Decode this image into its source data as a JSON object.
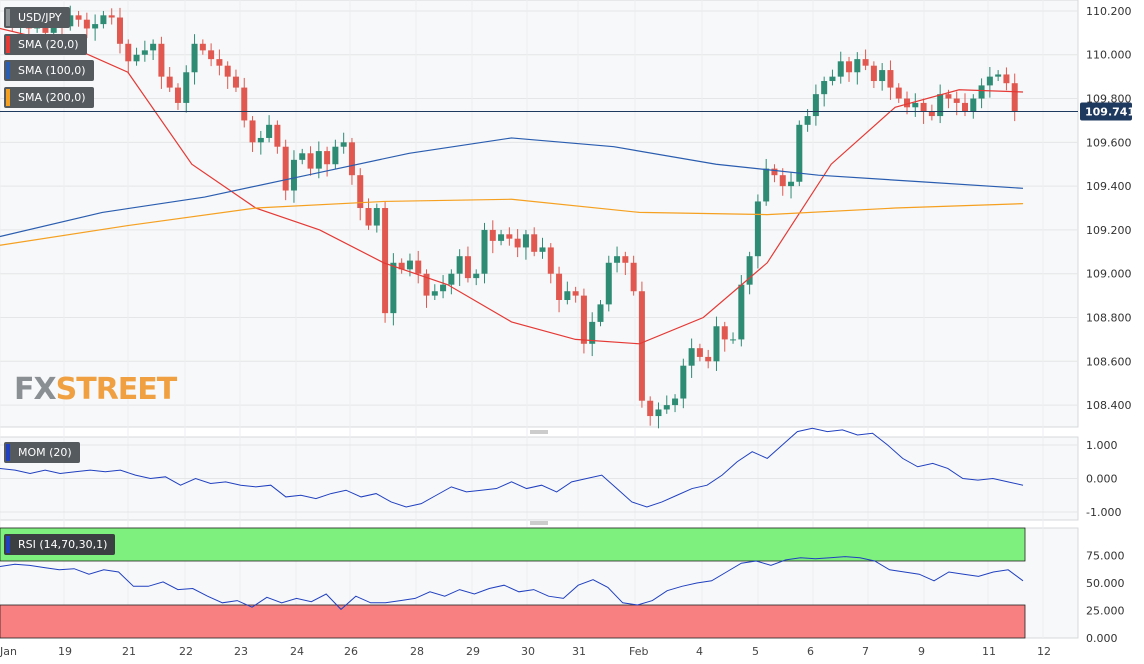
{
  "symbol": "USD/JPY",
  "brand": {
    "prefix": "FX",
    "suffix": "STREET"
  },
  "legend": {
    "sma20": {
      "label": "SMA (20,0)",
      "color": "#e53935"
    },
    "sma100": {
      "label": "SMA (100,0)",
      "color": "#2a5db0"
    },
    "sma200": {
      "label": "SMA (200,0)",
      "color": "#f5a020"
    },
    "mom": {
      "label": "MOM (20)",
      "color": "#2040c0"
    },
    "rsi": {
      "label": "RSI (14,70,30,1)",
      "color": "#2040c0"
    }
  },
  "colors": {
    "up": "#2e8b74",
    "down": "#e0584f",
    "price_line": "#1f3a5f",
    "rsi_high_zone": "#7ef07e",
    "rsi_low_zone": "#f98080"
  },
  "chart_data": [
    {
      "type": "candlestick",
      "title": "USD/JPY",
      "timeframe": "hourly (4h) candles",
      "x_ticks": [
        "Jan",
        "19",
        "21",
        "22",
        "23",
        "24",
        "26",
        "28",
        "29",
        "30",
        "31",
        "Feb",
        "4",
        "5",
        "6",
        "7",
        "9",
        "11",
        "12"
      ],
      "y_ticks": [
        "110.200",
        "110.000",
        "109.800",
        "109.600",
        "109.400",
        "109.200",
        "109.000",
        "108.800",
        "108.600",
        "108.400"
      ],
      "ylim": [
        108.3,
        110.25
      ],
      "last_price": "109.741",
      "close_path": [
        110.18,
        110.14,
        110.16,
        110.12,
        110.17,
        110.1,
        110.15,
        110.13,
        110.18,
        110.16,
        110.12,
        110.14,
        110.18,
        110.17,
        110.05,
        109.97,
        110.0,
        110.02,
        110.05,
        109.9,
        109.85,
        109.78,
        109.92,
        110.05,
        110.02,
        109.98,
        109.95,
        109.9,
        109.85,
        109.7,
        109.6,
        109.62,
        109.68,
        109.58,
        109.38,
        109.52,
        109.55,
        109.48,
        109.56,
        109.5,
        109.58,
        109.6,
        109.45,
        109.3,
        109.22,
        109.3,
        108.82,
        109.05,
        109.02,
        109.06,
        109.0,
        108.9,
        108.92,
        108.95,
        109.0,
        109.08,
        108.98,
        109.0,
        109.2,
        109.15,
        109.18,
        109.16,
        109.12,
        109.18,
        109.1,
        109.12,
        109.0,
        108.88,
        108.92,
        108.9,
        108.68,
        108.78,
        108.86,
        109.05,
        109.08,
        109.05,
        108.92,
        108.42,
        108.35,
        108.38,
        108.4,
        108.43,
        108.58,
        108.66,
        108.62,
        108.6,
        108.76,
        108.7,
        108.7,
        108.95,
        109.08,
        109.33,
        109.48,
        109.45,
        109.4,
        109.42,
        109.68,
        109.72,
        109.82,
        109.88,
        109.9,
        109.97,
        109.92,
        109.98,
        109.95,
        109.88,
        109.93,
        109.85,
        109.8,
        109.76,
        109.78,
        109.74,
        109.72,
        109.82,
        109.8,
        109.78,
        109.74,
        109.8,
        109.86,
        109.9,
        109.91,
        109.87,
        109.741
      ],
      "overlays": [
        {
          "name": "SMA (20,0)",
          "values": [
            110.12,
            110.05,
            109.92,
            109.5,
            109.3,
            109.2,
            109.05,
            108.95,
            108.78,
            108.7,
            108.68,
            108.8,
            109.05,
            109.5,
            109.76,
            109.84,
            109.83
          ]
        },
        {
          "name": "SMA (100,0)",
          "values": [
            109.17,
            109.28,
            109.35,
            109.45,
            109.55,
            109.62,
            109.58,
            109.5,
            109.45,
            109.42,
            109.39
          ]
        },
        {
          "name": "SMA (200,0)",
          "values": [
            109.13,
            109.22,
            109.3,
            109.33,
            109.34,
            109.28,
            109.27,
            109.3,
            109.32
          ]
        }
      ]
    },
    {
      "type": "line",
      "title": "MOM (20)",
      "y_ticks": [
        "1.000",
        "0.000",
        "-1.000"
      ],
      "ylim": [
        -1.0,
        1.0
      ],
      "series": [
        {
          "name": "MOM (20)",
          "values": [
            0.3,
            0.25,
            0.15,
            0.25,
            0.15,
            0.2,
            0.25,
            0.2,
            0.25,
            0.1,
            0.0,
            0.05,
            -0.2,
            0.0,
            -0.15,
            -0.1,
            -0.2,
            -0.25,
            -0.2,
            -0.55,
            -0.5,
            -0.6,
            -0.45,
            -0.35,
            -0.55,
            -0.45,
            -0.7,
            -0.85,
            -0.75,
            -0.5,
            -0.25,
            -0.4,
            -0.35,
            -0.3,
            -0.1,
            -0.3,
            -0.2,
            -0.4,
            -0.1,
            0.0,
            0.1,
            -0.3,
            -0.7,
            -0.85,
            -0.7,
            -0.5,
            -0.3,
            -0.2,
            0.1,
            0.5,
            0.8,
            0.6,
            1.0,
            1.4,
            1.5,
            1.4,
            1.45,
            1.3,
            1.35,
            1.0,
            0.6,
            0.35,
            0.45,
            0.3,
            0.0,
            -0.05,
            0.0,
            -0.1,
            -0.2
          ]
        }
      ]
    },
    {
      "type": "line",
      "title": "RSI (14,70,30,1)",
      "y_ticks": [
        "75.000",
        "50.000",
        "25.000",
        "0.000"
      ],
      "ylim": [
        0,
        100
      ],
      "bands": {
        "upper": 70,
        "lower": 30
      },
      "series": [
        {
          "name": "RSI (14,70,30,1)",
          "values": [
            65,
            67,
            66,
            64,
            62,
            63,
            58,
            62,
            60,
            47,
            47,
            51,
            44,
            45,
            38,
            32,
            34,
            28,
            37,
            32,
            36,
            33,
            40,
            26,
            38,
            32,
            32,
            34,
            36,
            42,
            38,
            44,
            40,
            45,
            48,
            42,
            44,
            38,
            36,
            48,
            53,
            46,
            32,
            30,
            34,
            43,
            47,
            50,
            52,
            60,
            68,
            70,
            66,
            71,
            73,
            72,
            73,
            74,
            73,
            70,
            62,
            60,
            58,
            52,
            60,
            58,
            56,
            60,
            62,
            52
          ]
        }
      ]
    }
  ]
}
